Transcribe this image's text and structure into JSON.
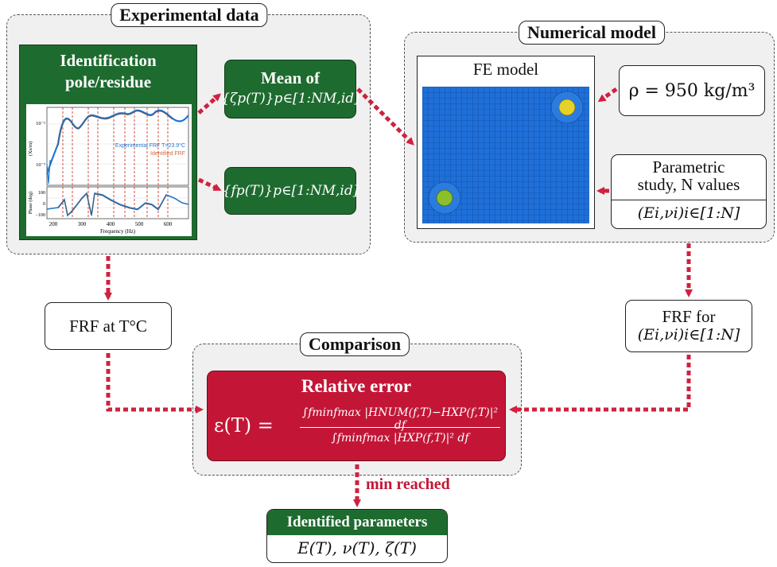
{
  "experimental": {
    "title": "Experimental data",
    "identification_title": "Identification pole/residue",
    "mean_label": "Mean of",
    "zeta_set": "{ζp(T)}p∈[1:NM,id]",
    "freq_set": "{fp(T)}p∈[1:NM,id]",
    "plot": {
      "legend_experimental": "Experimental FRF T=23.9°C",
      "legend_identified": "Identified FRF",
      "ylabel_top": "(Xs/m)",
      "ylabel_bottom": "Phase (deg)",
      "xlabel": "Frequency (Hz)",
      "x_ticks": [
        "200",
        "300",
        "400",
        "500",
        "600"
      ],
      "y_ticks_top": [
        "10⁻²",
        "10⁻³"
      ],
      "y_ticks_bottom": [
        "100",
        "0",
        "−100"
      ]
    }
  },
  "numerical": {
    "title": "Numerical model",
    "fe_label": "FE model",
    "density": "ρ = 950 kg/m³",
    "parametric_line1": "Parametric",
    "parametric_line2": "study, N values",
    "parametric_set": "(Ei,νi)i∈[1:N]"
  },
  "frf_at_temp": "FRF at T°C",
  "frf_for_line1": "FRF for",
  "frf_for_line2": "(Ei,νi)i∈[1:N]",
  "comparison": {
    "title": "Comparison",
    "relative_error_title": "Relative error",
    "formula_lhs": "ε(T) =",
    "numerator": "∫fminfmax |HNUM(f,T)−HXP(f,T)|² df",
    "denominator": "∫fminfmax |HXP(f,T)|² df"
  },
  "min_reached": "min reached",
  "identified": {
    "title": "Identified parameters",
    "values": "E(T), ν(T), ζ(T)"
  },
  "colors": {
    "green": "#1e6b2f",
    "red": "#c31636",
    "arrow": "#d0213f",
    "fe_mesh": "#1f6fd8",
    "sensor_top": "#e5d12a",
    "sensor_bottom": "#8cbf2a"
  }
}
